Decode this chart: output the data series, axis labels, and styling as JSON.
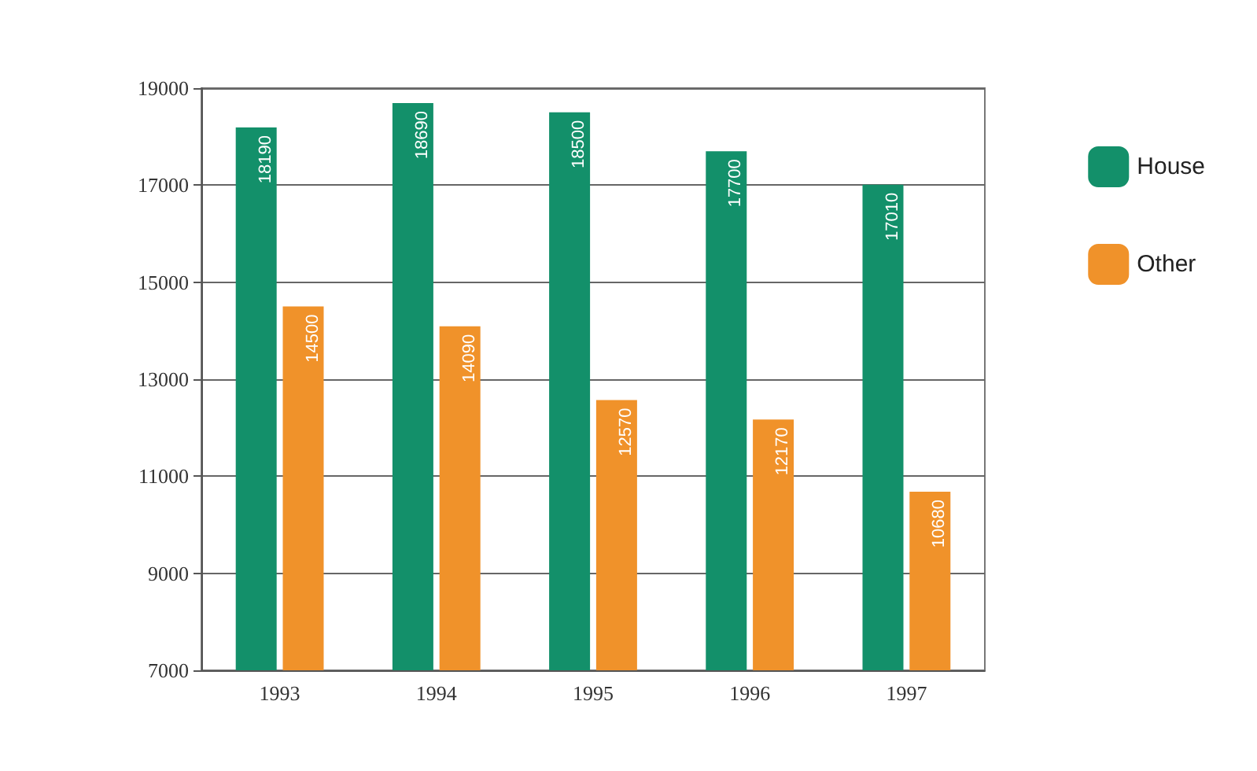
{
  "chart_data": {
    "type": "bar",
    "categories": [
      "1993",
      "1994",
      "1995",
      "1996",
      "1997"
    ],
    "series": [
      {
        "name": "House",
        "color": "#13906a",
        "values": [
          18190,
          18690,
          18500,
          17700,
          17010
        ]
      },
      {
        "name": "Other",
        "color": "#f0922a",
        "values": [
          14500,
          14090,
          12570,
          12170,
          10680
        ]
      }
    ],
    "ylim": [
      7000,
      19000
    ],
    "yticks": [
      7000,
      9000,
      11000,
      13000,
      15000,
      17000,
      19000
    ],
    "grid": "y",
    "legend": "top right",
    "data_labels": true
  }
}
